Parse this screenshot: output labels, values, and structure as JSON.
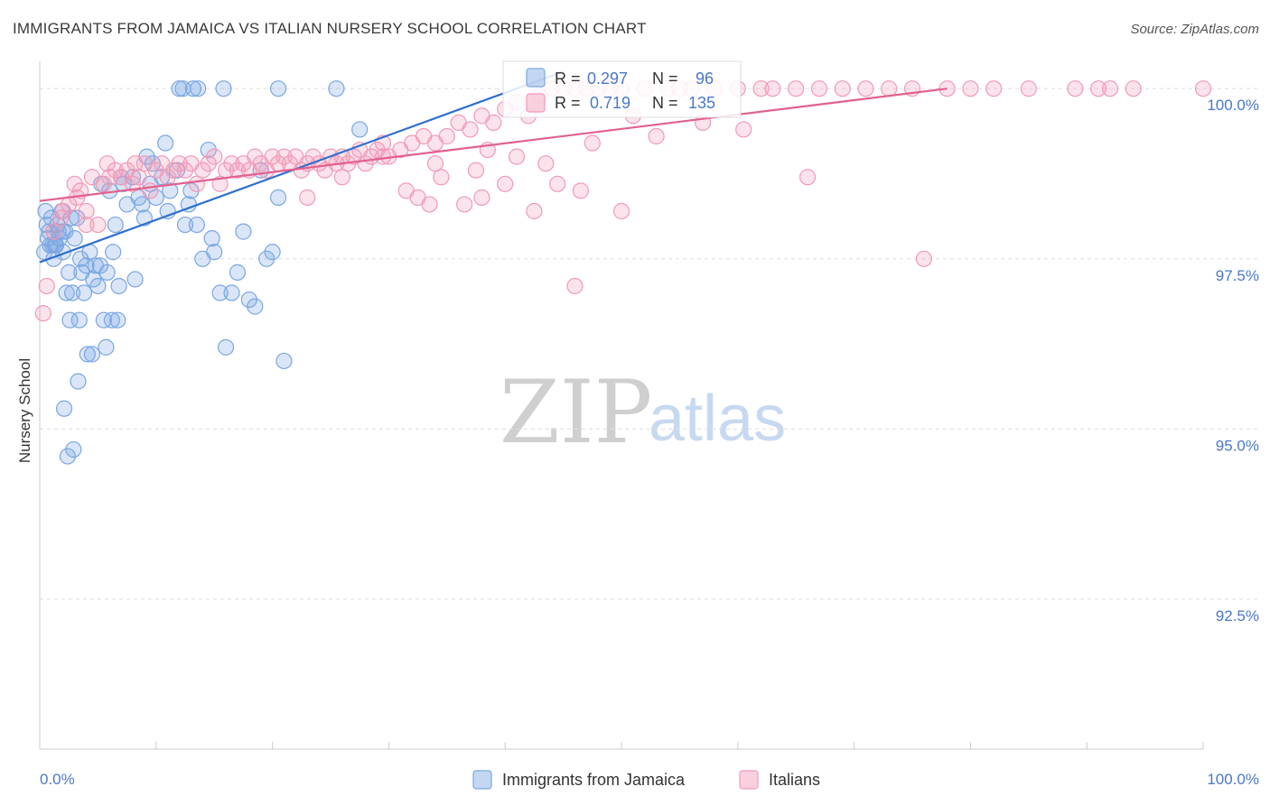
{
  "chart_data": {
    "type": "scatter",
    "title": "IMMIGRANTS FROM JAMAICA VS ITALIAN NURSERY SCHOOL CORRELATION CHART",
    "source": "Source: ZipAtlas.com",
    "ylabel": "Nursery School",
    "xlabel": "",
    "xlim": [
      0,
      100
    ],
    "ylim": [
      90.3,
      100.4
    ],
    "x_tick_labels": [
      "0.0%",
      "100.0%"
    ],
    "y_ticks": [
      {
        "value": 100.0,
        "label": "100.0%"
      },
      {
        "value": 97.5,
        "label": "97.5%"
      },
      {
        "value": 95.0,
        "label": "95.0%"
      },
      {
        "value": 92.5,
        "label": "92.5%"
      }
    ],
    "watermark": {
      "part1": "ZIP",
      "part2": "atlas"
    },
    "legend": [
      {
        "name": "Immigrants from Jamaica",
        "color": "#7aa6e3"
      },
      {
        "name": "Italians",
        "color": "#f19ab6"
      }
    ],
    "stats": [
      {
        "r_label": "R =",
        "r_value": "0.297",
        "n_label": "N =",
        "n_value": "96"
      },
      {
        "r_label": "R =",
        "r_value": "0.719",
        "n_label": "N =",
        "n_value": "135"
      }
    ],
    "series": [
      {
        "name": "Immigrants from Jamaica",
        "color": "#7aa6e3",
        "line_color": "#2f6fd0",
        "trend": {
          "x": [
            0,
            45
          ],
          "y": [
            97.45,
            100.25
          ]
        },
        "points": [
          [
            0.5,
            98.2
          ],
          [
            0.6,
            98.0
          ],
          [
            0.8,
            97.9
          ],
          [
            0.9,
            97.7
          ],
          [
            1.0,
            98.1
          ],
          [
            1.2,
            97.5
          ],
          [
            1.4,
            97.7
          ],
          [
            1.5,
            98.0
          ],
          [
            1.7,
            97.8
          ],
          [
            1.9,
            98.2
          ],
          [
            2.0,
            97.6
          ],
          [
            2.2,
            97.9
          ],
          [
            2.5,
            97.3
          ],
          [
            2.8,
            97.0
          ],
          [
            3.0,
            97.8
          ],
          [
            3.2,
            98.1
          ],
          [
            3.5,
            97.5
          ],
          [
            3.8,
            97.0
          ],
          [
            4.0,
            97.4
          ],
          [
            4.3,
            97.6
          ],
          [
            4.6,
            97.2
          ],
          [
            5.0,
            97.1
          ],
          [
            5.2,
            97.4
          ],
          [
            5.5,
            96.6
          ],
          [
            5.8,
            97.3
          ],
          [
            6.0,
            98.5
          ],
          [
            6.3,
            97.6
          ],
          [
            6.8,
            97.1
          ],
          [
            7.2,
            98.6
          ],
          [
            7.5,
            98.3
          ],
          [
            8.0,
            98.7
          ],
          [
            8.5,
            98.4
          ],
          [
            9.0,
            98.1
          ],
          [
            9.5,
            98.6
          ],
          [
            10.0,
            98.4
          ],
          [
            10.5,
            98.7
          ],
          [
            11.0,
            98.2
          ],
          [
            11.8,
            98.8
          ],
          [
            12.5,
            98.0
          ],
          [
            13.0,
            98.5
          ],
          [
            13.5,
            98.0
          ],
          [
            14.0,
            97.5
          ],
          [
            15.0,
            97.6
          ],
          [
            15.5,
            97.0
          ],
          [
            16.0,
            96.2
          ],
          [
            17.0,
            97.3
          ],
          [
            18.0,
            96.9
          ],
          [
            19.0,
            98.8
          ],
          [
            19.5,
            97.5
          ],
          [
            20.0,
            97.6
          ],
          [
            20.5,
            98.4
          ],
          [
            21.0,
            96.0
          ],
          [
            2.3,
            97.0
          ],
          [
            2.6,
            96.6
          ],
          [
            3.4,
            96.6
          ],
          [
            4.1,
            96.1
          ],
          [
            5.7,
            96.2
          ],
          [
            6.7,
            96.6
          ],
          [
            3.3,
            95.7
          ],
          [
            2.1,
            95.3
          ],
          [
            2.4,
            94.6
          ],
          [
            2.9,
            94.7
          ],
          [
            4.5,
            96.1
          ],
          [
            6.2,
            96.6
          ],
          [
            8.2,
            97.2
          ],
          [
            9.7,
            98.9
          ],
          [
            10.8,
            99.2
          ],
          [
            14.5,
            99.1
          ],
          [
            12.0,
            100.0
          ],
          [
            12.3,
            100.0
          ],
          [
            13.2,
            100.0
          ],
          [
            13.6,
            100.0
          ],
          [
            15.8,
            100.0
          ],
          [
            20.5,
            100.0
          ],
          [
            25.5,
            100.0
          ],
          [
            27.5,
            99.4
          ],
          [
            0.7,
            97.8
          ],
          [
            1.1,
            97.7
          ],
          [
            1.6,
            97.9
          ],
          [
            2.7,
            98.1
          ],
          [
            3.6,
            97.3
          ],
          [
            4.8,
            97.4
          ],
          [
            5.3,
            98.6
          ],
          [
            6.5,
            98.0
          ],
          [
            7.0,
            98.7
          ],
          [
            9.2,
            99.0
          ],
          [
            11.2,
            98.5
          ],
          [
            12.8,
            98.3
          ],
          [
            14.8,
            97.8
          ],
          [
            16.5,
            97.0
          ],
          [
            17.5,
            97.9
          ],
          [
            18.5,
            96.8
          ],
          [
            8.8,
            98.3
          ],
          [
            1.3,
            97.7
          ],
          [
            0.4,
            97.6
          ],
          [
            2.0,
            97.9
          ]
        ]
      },
      {
        "name": "Italians",
        "color": "#f19ab6",
        "line_color": "#e2608f",
        "trend": {
          "x": [
            0,
            78
          ],
          "y": [
            98.35,
            100.0
          ]
        },
        "points": [
          [
            0.3,
            96.7
          ],
          [
            0.6,
            97.1
          ],
          [
            1.2,
            97.9
          ],
          [
            1.8,
            98.1
          ],
          [
            2.5,
            98.3
          ],
          [
            3.0,
            98.6
          ],
          [
            3.5,
            98.5
          ],
          [
            4.0,
            98.2
          ],
          [
            4.5,
            98.7
          ],
          [
            5.0,
            98.0
          ],
          [
            5.5,
            98.6
          ],
          [
            6.0,
            98.7
          ],
          [
            6.5,
            98.8
          ],
          [
            7.0,
            98.7
          ],
          [
            7.5,
            98.8
          ],
          [
            8.0,
            98.6
          ],
          [
            8.5,
            98.7
          ],
          [
            9.0,
            98.9
          ],
          [
            9.5,
            98.5
          ],
          [
            10.0,
            98.8
          ],
          [
            10.5,
            98.9
          ],
          [
            11.0,
            98.7
          ],
          [
            11.5,
            98.8
          ],
          [
            12.0,
            98.9
          ],
          [
            12.5,
            98.8
          ],
          [
            13.0,
            98.9
          ],
          [
            13.5,
            98.6
          ],
          [
            14.0,
            98.8
          ],
          [
            14.5,
            98.9
          ],
          [
            15.0,
            99.0
          ],
          [
            15.5,
            98.6
          ],
          [
            16.0,
            98.8
          ],
          [
            16.5,
            98.9
          ],
          [
            17.0,
            98.8
          ],
          [
            17.5,
            98.9
          ],
          [
            18.0,
            98.8
          ],
          [
            18.5,
            99.0
          ],
          [
            19.0,
            98.9
          ],
          [
            19.5,
            98.8
          ],
          [
            20.0,
            99.0
          ],
          [
            20.5,
            98.9
          ],
          [
            21.0,
            99.0
          ],
          [
            21.5,
            98.9
          ],
          [
            22.0,
            99.0
          ],
          [
            22.5,
            98.8
          ],
          [
            23.0,
            98.9
          ],
          [
            23.5,
            99.0
          ],
          [
            24.0,
            98.9
          ],
          [
            24.5,
            98.8
          ],
          [
            25.0,
            99.0
          ],
          [
            25.5,
            98.9
          ],
          [
            26.0,
            99.0
          ],
          [
            26.5,
            98.9
          ],
          [
            27.0,
            99.0
          ],
          [
            27.5,
            99.1
          ],
          [
            28.0,
            98.9
          ],
          [
            28.5,
            99.0
          ],
          [
            29.0,
            99.1
          ],
          [
            29.5,
            99.0
          ],
          [
            30.0,
            99.0
          ],
          [
            31.0,
            99.1
          ],
          [
            32.0,
            99.2
          ],
          [
            33.0,
            99.3
          ],
          [
            34.0,
            99.2
          ],
          [
            35.0,
            99.3
          ],
          [
            36.0,
            99.5
          ],
          [
            37.0,
            99.4
          ],
          [
            38.0,
            99.6
          ],
          [
            39.0,
            99.5
          ],
          [
            40.0,
            99.7
          ],
          [
            41.0,
            99.8
          ],
          [
            42.0,
            99.6
          ],
          [
            43.0,
            99.9
          ],
          [
            44.0,
            100.0
          ],
          [
            45.0,
            100.0
          ],
          [
            46.0,
            100.0
          ],
          [
            47.0,
            100.0
          ],
          [
            48.0,
            100.0
          ],
          [
            49.0,
            100.0
          ],
          [
            50.0,
            100.0
          ],
          [
            52.0,
            100.0
          ],
          [
            54.0,
            100.0
          ],
          [
            55.0,
            100.0
          ],
          [
            56.0,
            100.0
          ],
          [
            58.0,
            100.0
          ],
          [
            60.0,
            100.0
          ],
          [
            62.0,
            100.0
          ],
          [
            63.0,
            100.0
          ],
          [
            65.0,
            100.0
          ],
          [
            67.0,
            100.0
          ],
          [
            69.0,
            100.0
          ],
          [
            71.0,
            100.0
          ],
          [
            73.0,
            100.0
          ],
          [
            75.0,
            100.0
          ],
          [
            78.0,
            100.0
          ],
          [
            80.0,
            100.0
          ],
          [
            82.0,
            100.0
          ],
          [
            85.0,
            100.0
          ],
          [
            89.0,
            100.0
          ],
          [
            91.0,
            100.0
          ],
          [
            92.0,
            100.0
          ],
          [
            94.0,
            100.0
          ],
          [
            100.0,
            100.0
          ],
          [
            31.5,
            98.5
          ],
          [
            32.5,
            98.4
          ],
          [
            34.5,
            98.7
          ],
          [
            36.5,
            98.3
          ],
          [
            38.0,
            98.4
          ],
          [
            40.0,
            98.6
          ],
          [
            42.5,
            98.2
          ],
          [
            44.5,
            98.6
          ],
          [
            46.5,
            98.5
          ],
          [
            50.0,
            98.2
          ],
          [
            53.0,
            99.3
          ],
          [
            57.0,
            99.5
          ],
          [
            60.5,
            99.4
          ],
          [
            66.0,
            98.7
          ],
          [
            76.0,
            97.5
          ],
          [
            46.0,
            97.1
          ],
          [
            41.0,
            99.0
          ],
          [
            37.5,
            98.8
          ],
          [
            34.0,
            98.9
          ],
          [
            29.5,
            99.2
          ],
          [
            26.0,
            98.7
          ],
          [
            23.0,
            98.4
          ],
          [
            8.2,
            98.9
          ],
          [
            5.8,
            98.9
          ],
          [
            4.0,
            98.0
          ],
          [
            3.2,
            98.4
          ],
          [
            2.0,
            98.2
          ],
          [
            43.5,
            98.9
          ],
          [
            47.5,
            99.2
          ],
          [
            51.0,
            99.6
          ],
          [
            33.5,
            98.3
          ],
          [
            38.5,
            99.1
          ]
        ]
      }
    ]
  }
}
